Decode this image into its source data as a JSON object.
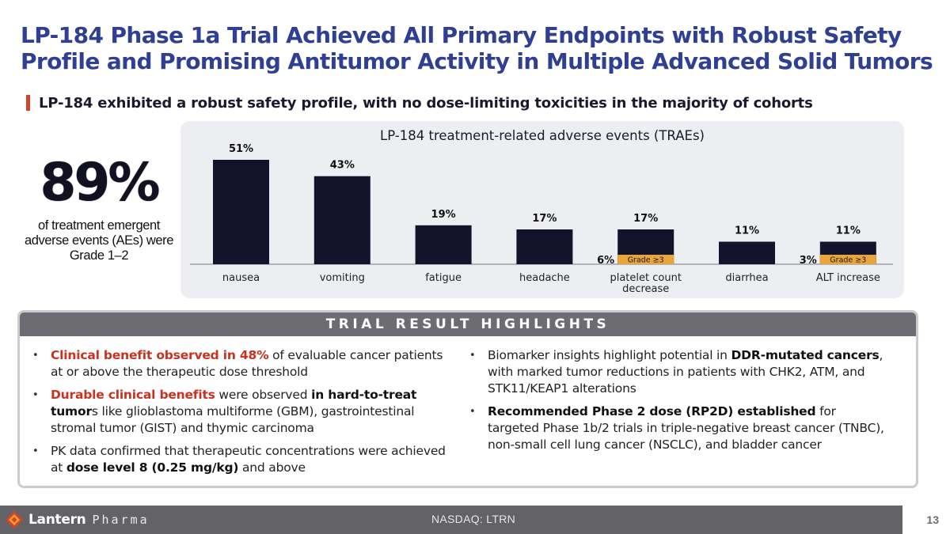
{
  "title": "LP-184 Phase 1a Trial Achieved All Primary Endpoints with Robust Safety Profile and Promising Antitumor Activity in Multiple Advanced Solid Tumors",
  "subheading": "LP-184 exhibited a robust safety profile, with no dose-limiting toxicities in the majority of cohorts",
  "stat": {
    "value": "89%",
    "description": "of treatment emergent adverse events (AEs) were Grade 1–2"
  },
  "chart_data": {
    "type": "bar",
    "title": "LP-184 treatment-related adverse events (TRAEs)",
    "categories": [
      "nausea",
      "vomiting",
      "fatigue",
      "headache",
      "platelet count decrease",
      "diarrhea",
      "ALT increase"
    ],
    "category_lines": [
      [
        "nausea"
      ],
      [
        "vomiting"
      ],
      [
        "fatigue"
      ],
      [
        "headache"
      ],
      [
        "platelet count",
        "decrease"
      ],
      [
        "diarrhea"
      ],
      [
        "ALT increase"
      ]
    ],
    "series": [
      {
        "name": "",
        "values": [
          51,
          43,
          19,
          17,
          17,
          11,
          11
        ],
        "color": "#13132b"
      },
      {
        "name": "Grade ≥3",
        "values": [
          0,
          0,
          0,
          0,
          6,
          0,
          3
        ],
        "color": "#e9a53b"
      }
    ],
    "value_labels": [
      "51%",
      "43%",
      "19%",
      "17%",
      "17%",
      "11%",
      "11%"
    ],
    "grade3_labels": [
      "",
      "",
      "",
      "",
      "6%",
      "",
      "3%"
    ],
    "grade3_text": "Grade ≥3",
    "ylim": [
      0,
      55
    ],
    "grid": false,
    "legend": "none"
  },
  "highlights": {
    "header": "TRIAL RESULT HIGHLIGHTS",
    "left": [
      {
        "red": "Clinical benefit observed in 48%",
        "rest": " of evaluable cancer patients at or above the therapeutic dose threshold"
      },
      {
        "red": "Durable clinical benefits",
        "mid": " were observed ",
        "bold": "in hard-to-treat tumor",
        "rest": "s like glioblastoma multiforme (GBM), gastrointestinal stromal tumor (GIST) and thymic carcinoma"
      },
      {
        "pre": "PK data confirmed that therapeutic concentrations were achieved at ",
        "bold": "dose level 8 (0.25 mg/kg)",
        "rest": " and above"
      }
    ],
    "right": [
      {
        "pre": "Biomarker insights highlight potential in ",
        "bold": "DDR-mutated cancers",
        "rest": ", with marked tumor reductions in patients with CHK2, ATM, and STK11/KEAP1 alterations"
      },
      {
        "bold": "Recommended Phase 2 dose (RP2D) established",
        "rest": " for targeted Phase 1b/2 trials in triple-negative breast cancer (TNBC), non-small cell lung cancer (NSCLC), and bladder cancer"
      }
    ]
  },
  "footer": {
    "logo_main": "Lantern",
    "logo_sub": "Pharma",
    "ticker": "NASDAQ: LTRN",
    "page": "13"
  },
  "colors": {
    "title": "#2f3f93",
    "accent_red": "#c8321f",
    "bar": "#13132b",
    "grade3": "#e9a53b",
    "panel": "#eceef1",
    "header_gray": "#6d6d71"
  }
}
